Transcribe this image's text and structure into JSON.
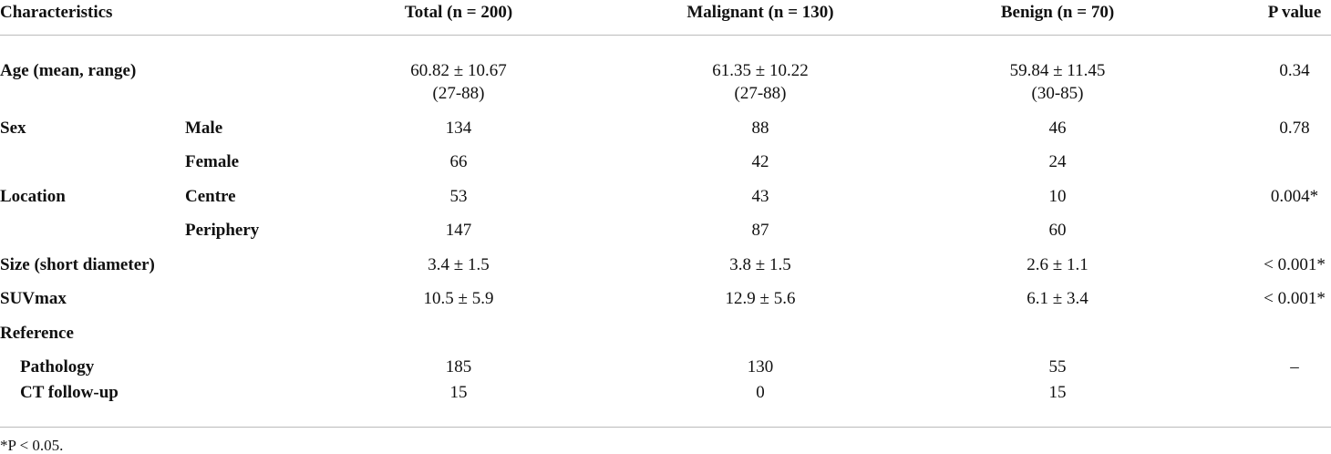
{
  "table": {
    "header": [
      "Characteristics",
      "Total (n = 200)",
      "Malignant (n = 130)",
      "Benign (n = 70)",
      "P value"
    ],
    "rows": [
      {
        "label": "Age (mean, range)",
        "cells": [
          [
            "60.82 ± 10.67",
            "(27-88)"
          ],
          [
            "61.35 ± 10.22",
            "(27-88)"
          ],
          [
            "59.84 ± 11.45",
            "(30-85)"
          ],
          [
            "0.34"
          ]
        ]
      },
      {
        "label": "Sex",
        "sublabel": "Male",
        "cells": [
          [
            "134"
          ],
          [
            "88"
          ],
          [
            "46"
          ],
          [
            "0.78"
          ]
        ]
      },
      {
        "sublabel": "Female",
        "cells": [
          [
            "66"
          ],
          [
            "42"
          ],
          [
            "24"
          ]
        ]
      },
      {
        "label": "Location",
        "sublabel": "Centre",
        "cells": [
          [
            "53"
          ],
          [
            "43"
          ],
          [
            "10"
          ],
          [
            "0.004*"
          ]
        ]
      },
      {
        "sublabel": "Periphery",
        "cells": [
          [
            "147"
          ],
          [
            "87"
          ],
          [
            "60"
          ]
        ]
      },
      {
        "label": "Size (short diameter)",
        "cells": [
          [
            "3.4 ± 1.5"
          ],
          [
            "3.8 ± 1.5"
          ],
          [
            "2.6 ± 1.1"
          ],
          [
            "< 0.001*"
          ]
        ]
      },
      {
        "label": "SUVmax",
        "cells": [
          [
            "10.5 ± 5.9"
          ],
          [
            "12.9 ± 5.6"
          ],
          [
            "6.1 ± 3.4"
          ],
          [
            "< 0.001*"
          ]
        ]
      },
      {
        "label": "Reference",
        "items": [
          {
            "label": "Pathology",
            "cells": [
              [
                "185"
              ],
              [
                "130"
              ],
              [
                "55"
              ],
              [
                "–"
              ]
            ]
          },
          {
            "label": "CT follow-up",
            "cells": [
              [
                "15"
              ],
              [
                "0"
              ],
              [
                "15"
              ]
            ]
          }
        ]
      }
    ],
    "footnote": "*P < 0.05."
  }
}
